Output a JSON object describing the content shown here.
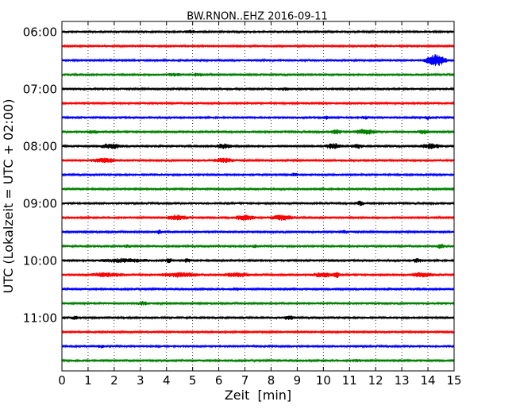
{
  "chart_data": {
    "type": "line",
    "title": "BW.RNON..EHZ 2016-09-11",
    "xlabel": "Zeit  [min]",
    "ylabel": "UTC (Lokalzeit = UTC + 02:00)",
    "xlim": [
      0,
      15
    ],
    "x_ticks": [
      "0",
      "1",
      "2",
      "3",
      "4",
      "5",
      "6",
      "7",
      "8",
      "9",
      "10",
      "11",
      "12",
      "13",
      "14",
      "15"
    ],
    "y_ticks": [
      "06:00",
      "07:00",
      "08:00",
      "09:00",
      "10:00",
      "11:00"
    ],
    "grid": "vertical dotted",
    "trace_colors": [
      "#000000",
      "#ff0000",
      "#0000ff",
      "#008000"
    ],
    "traces": [
      {
        "start": "06:00",
        "events": [
          [
            4.9,
            0.3,
            1.2
          ]
        ]
      },
      {
        "start": "06:15",
        "events": [
          [
            11.9,
            0.3,
            1.0
          ]
        ]
      },
      {
        "start": "06:30",
        "events": [
          [
            14.3,
            0.6,
            6.5
          ]
        ]
      },
      {
        "start": "06:45",
        "events": [
          [
            4.3,
            0.4,
            1.4
          ],
          [
            5.2,
            0.3,
            1.6
          ]
        ]
      },
      {
        "start": "07:00",
        "events": [
          [
            8.5,
            0.4,
            1.0
          ]
        ]
      },
      {
        "start": "07:15",
        "events": []
      },
      {
        "start": "07:30",
        "events": [
          [
            10.1,
            0.2,
            1.6
          ],
          [
            11.6,
            0.2,
            1.4
          ],
          [
            14.0,
            0.2,
            1.4
          ]
        ]
      },
      {
        "start": "07:45",
        "events": [
          [
            1.2,
            0.3,
            1.2
          ],
          [
            10.5,
            0.3,
            2.2
          ],
          [
            11.6,
            0.6,
            2.8
          ],
          [
            13.8,
            0.3,
            2.4
          ]
        ]
      },
      {
        "start": "08:00",
        "events": [
          [
            1.9,
            0.6,
            2.8
          ],
          [
            6.2,
            0.4,
            2.4
          ],
          [
            10.4,
            0.5,
            2.6
          ],
          [
            11.3,
            0.4,
            2.0
          ],
          [
            14.1,
            0.6,
            2.6
          ]
        ]
      },
      {
        "start": "08:15",
        "events": [
          [
            1.6,
            0.7,
            2.2
          ],
          [
            6.2,
            0.6,
            2.2
          ]
        ]
      },
      {
        "start": "08:30",
        "events": [
          [
            8.9,
            0.2,
            1.4
          ]
        ]
      },
      {
        "start": "08:45",
        "events": []
      },
      {
        "start": "09:00",
        "events": [
          [
            11.4,
            0.2,
            2.4
          ]
        ]
      },
      {
        "start": "09:15",
        "events": [
          [
            4.4,
            0.6,
            2.6
          ],
          [
            7.0,
            0.6,
            2.6
          ],
          [
            8.4,
            0.7,
            2.6
          ]
        ]
      },
      {
        "start": "09:30",
        "events": [
          [
            3.7,
            0.2,
            1.8
          ],
          [
            10.8,
            0.2,
            1.4
          ]
        ]
      },
      {
        "start": "09:45",
        "events": [
          [
            2.5,
            0.2,
            1.4
          ],
          [
            7.4,
            0.2,
            1.2
          ],
          [
            14.5,
            0.3,
            2.2
          ]
        ]
      },
      {
        "start": "10:00",
        "events": [
          [
            2.4,
            1.4,
            1.8
          ],
          [
            4.1,
            0.2,
            2.0
          ],
          [
            4.8,
            0.2,
            2.0
          ],
          [
            13.6,
            0.3,
            1.6
          ]
        ]
      },
      {
        "start": "10:15",
        "events": [
          [
            1.7,
            1.0,
            2.0
          ],
          [
            4.5,
            1.2,
            2.2
          ],
          [
            6.7,
            0.8,
            2.0
          ],
          [
            10.0,
            0.6,
            2.0
          ],
          [
            10.5,
            0.2,
            3.0
          ],
          [
            13.8,
            0.7,
            2.2
          ]
        ]
      },
      {
        "start": "10:30",
        "events": [
          [
            6.7,
            0.3,
            1.0
          ]
        ]
      },
      {
        "start": "10:45",
        "events": [
          [
            3.1,
            0.3,
            1.8
          ]
        ]
      },
      {
        "start": "11:00",
        "events": [
          [
            0.5,
            0.2,
            1.4
          ],
          [
            8.7,
            0.3,
            2.0
          ]
        ]
      },
      {
        "start": "11:15",
        "events": []
      },
      {
        "start": "11:30",
        "events": [
          [
            1.5,
            0.2,
            1.2
          ]
        ]
      },
      {
        "start": "11:45",
        "events": [
          [
            11.3,
            0.2,
            1.0
          ]
        ]
      }
    ]
  }
}
